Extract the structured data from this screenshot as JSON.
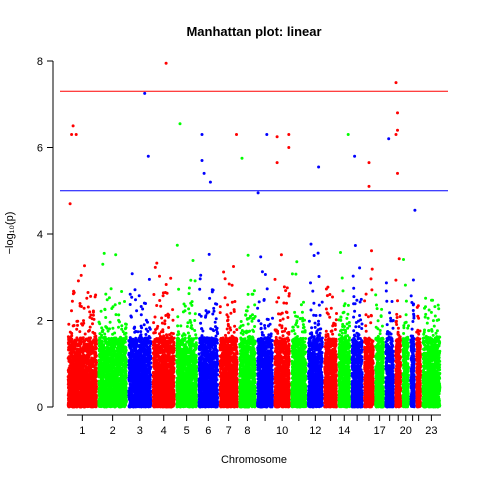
{
  "chart_data": {
    "type": "scatter",
    "title": "Manhattan plot: linear",
    "xlabel": "Chromosome",
    "ylabel": "−log₁₀(p)",
    "ylim": [
      0,
      8
    ],
    "y_ticks": [
      "0",
      "2",
      "4",
      "6",
      "8"
    ],
    "chromosome_labels": [
      "1",
      "2",
      "3",
      "4",
      "5",
      "6",
      "7",
      "8",
      "10",
      "12",
      "14",
      "17",
      "20",
      "23"
    ],
    "chromosomes": [
      {
        "chr": 1,
        "color": "#FF0000",
        "max": 4.4
      },
      {
        "chr": 2,
        "color": "#00FF00",
        "max": 4.3
      },
      {
        "chr": 3,
        "color": "#0000FF",
        "max": 4.2
      },
      {
        "chr": 4,
        "color": "#FF0000",
        "max": 4.4
      },
      {
        "chr": 5,
        "color": "#00FF00",
        "max": 4.7
      },
      {
        "chr": 6,
        "color": "#0000FF",
        "max": 4.5
      },
      {
        "chr": 7,
        "color": "#FF0000",
        "max": 3.8
      },
      {
        "chr": 8,
        "color": "#00FF00",
        "max": 3.6
      },
      {
        "chr": 9,
        "color": "#0000FF",
        "max": 3.9
      },
      {
        "chr": 10,
        "color": "#FF0000",
        "max": 3.9
      },
      {
        "chr": 11,
        "color": "#00FF00",
        "max": 4.3
      },
      {
        "chr": 12,
        "color": "#0000FF",
        "max": 4.5
      },
      {
        "chr": 13,
        "color": "#FF0000",
        "max": 3.0
      },
      {
        "chr": 14,
        "color": "#00FF00",
        "max": 4.4
      },
      {
        "chr": 15,
        "color": "#0000FF",
        "max": 4.2
      },
      {
        "chr": 16,
        "color": "#FF0000",
        "max": 4.6
      },
      {
        "chr": 17,
        "color": "#00FF00",
        "max": 4.8
      },
      {
        "chr": 18,
        "color": "#0000FF",
        "max": 3.7
      },
      {
        "chr": 19,
        "color": "#FF0000",
        "max": 4.9
      },
      {
        "chr": 20,
        "color": "#00FF00",
        "max": 3.7
      },
      {
        "chr": 21,
        "color": "#0000FF",
        "max": 3.4
      },
      {
        "chr": 22,
        "color": "#FF0000",
        "max": 4.5
      },
      {
        "chr": 23,
        "color": "#00FF00",
        "max": 2.6
      }
    ],
    "highlighted_points": [
      {
        "chr": 1,
        "pos": 0.1,
        "y": 4.7
      },
      {
        "chr": 1,
        "pos": 0.2,
        "y": 6.5
      },
      {
        "chr": 1,
        "pos": 0.15,
        "y": 6.3
      },
      {
        "chr": 1,
        "pos": 0.3,
        "y": 6.3
      },
      {
        "chr": 3,
        "pos": 0.7,
        "y": 7.25
      },
      {
        "chr": 3,
        "pos": 0.85,
        "y": 5.8
      },
      {
        "chr": 4,
        "pos": 0.6,
        "y": 7.95
      },
      {
        "chr": 5,
        "pos": 0.2,
        "y": 6.55
      },
      {
        "chr": 6,
        "pos": 0.2,
        "y": 6.3
      },
      {
        "chr": 6,
        "pos": 0.2,
        "y": 5.7
      },
      {
        "chr": 6,
        "pos": 0.3,
        "y": 5.4
      },
      {
        "chr": 6,
        "pos": 0.6,
        "y": 5.2
      },
      {
        "chr": 7,
        "pos": 0.9,
        "y": 6.3
      },
      {
        "chr": 8,
        "pos": 0.2,
        "y": 5.75
      },
      {
        "chr": 9,
        "pos": 0.1,
        "y": 4.95
      },
      {
        "chr": 9,
        "pos": 0.6,
        "y": 6.3
      },
      {
        "chr": 10,
        "pos": 0.2,
        "y": 6.25
      },
      {
        "chr": 10,
        "pos": 0.2,
        "y": 5.65
      },
      {
        "chr": 10,
        "pos": 0.9,
        "y": 6.0
      },
      {
        "chr": 10,
        "pos": 0.9,
        "y": 6.3
      },
      {
        "chr": 12,
        "pos": 0.7,
        "y": 5.55
      },
      {
        "chr": 14,
        "pos": 0.8,
        "y": 6.3
      },
      {
        "chr": 15,
        "pos": 0.3,
        "y": 5.8
      },
      {
        "chr": 16,
        "pos": 0.5,
        "y": 5.65
      },
      {
        "chr": 16,
        "pos": 0.5,
        "y": 5.1
      },
      {
        "chr": 18,
        "pos": 0.4,
        "y": 6.2
      },
      {
        "chr": 19,
        "pos": 0.2,
        "y": 7.5
      },
      {
        "chr": 19,
        "pos": 0.4,
        "y": 6.8
      },
      {
        "chr": 19,
        "pos": 0.4,
        "y": 6.4
      },
      {
        "chr": 19,
        "pos": 0.2,
        "y": 6.3
      },
      {
        "chr": 19,
        "pos": 0.4,
        "y": 5.4
      },
      {
        "chr": 21,
        "pos": 0.9,
        "y": 4.55
      }
    ],
    "thresholds": [
      {
        "y": 7.3,
        "color": "#FF0000"
      },
      {
        "y": 5.0,
        "color": "#0000FF"
      }
    ],
    "grid": false
  }
}
